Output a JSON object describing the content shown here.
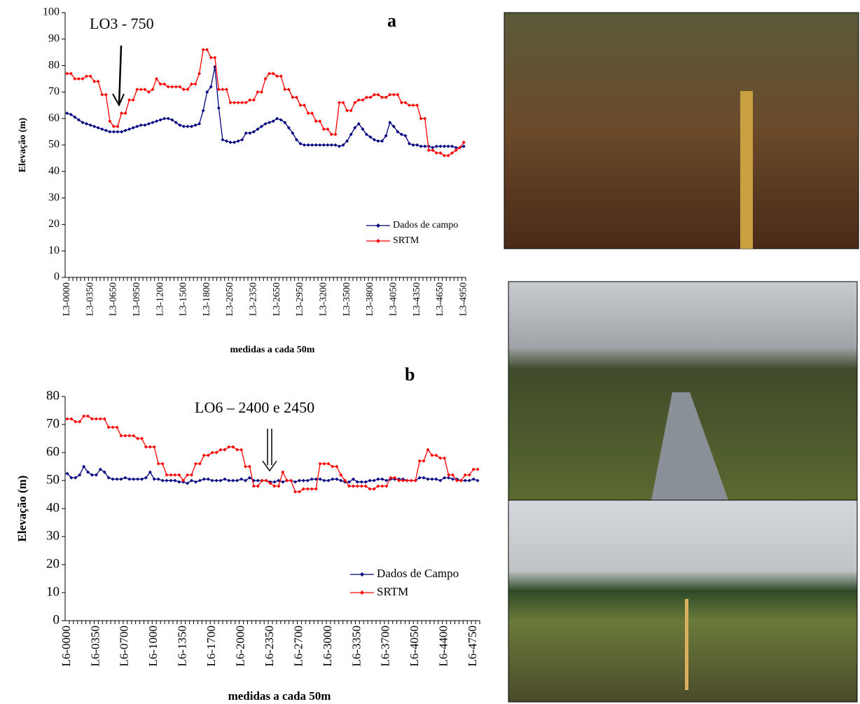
{
  "chart_data": [
    {
      "type": "line",
      "annotation": "LO3 - 750",
      "panel_label": "a",
      "y_label": "Elevação (m)",
      "x_label": "medidas a cada 50m",
      "ylim": [
        0,
        100
      ],
      "yticks": [
        0,
        10,
        20,
        30,
        40,
        50,
        60,
        70,
        80,
        90,
        100
      ],
      "legend": "lower right",
      "categories": [
        "L3-0000",
        null,
        null,
        null,
        null,
        null,
        "L3-0350",
        null,
        null,
        null,
        null,
        null,
        "L3-0650",
        null,
        null,
        null,
        null,
        null,
        "L3-0950",
        null,
        null,
        null,
        null,
        null,
        "L3-1200",
        null,
        null,
        null,
        null,
        null,
        "L3-1500",
        null,
        null,
        null,
        null,
        null,
        "L3-1800",
        null,
        null,
        null,
        null,
        null,
        "L3-2050",
        null,
        null,
        null,
        null,
        null,
        "L3-2350",
        null,
        null,
        null,
        null,
        null,
        "L3-2650",
        null,
        null,
        null,
        null,
        null,
        "L3-2950",
        null,
        null,
        null,
        null,
        null,
        "L3-3200",
        null,
        null,
        null,
        null,
        null,
        "L3-3500",
        null,
        null,
        null,
        null,
        null,
        "L3-3800",
        null,
        null,
        null,
        null,
        null,
        "L3-4050",
        null,
        null,
        null,
        null,
        null,
        "L3-4350",
        null,
        null,
        null,
        null,
        null,
        "L3-4650",
        null,
        null,
        null,
        null,
        null,
        "L3-4950"
      ],
      "series": [
        {
          "name": "Dados de campo",
          "color": "#000080",
          "values": [
            62,
            61.5,
            60.5,
            59.5,
            58.5,
            58,
            57.5,
            57,
            56.5,
            56,
            55.5,
            55,
            55,
            55,
            55,
            55.5,
            56,
            56.5,
            57,
            57.5,
            57.5,
            58,
            58.5,
            59,
            59.5,
            60,
            60,
            59.5,
            58.5,
            57.5,
            57,
            57,
            57,
            57.5,
            58,
            63,
            70,
            72,
            79.5,
            64,
            52,
            51.5,
            51,
            51,
            51.5,
            52,
            54.5,
            54.5,
            55,
            56,
            57,
            58,
            58.5,
            59,
            60,
            59.5,
            58.5,
            56.5,
            54.5,
            52,
            50.5,
            50,
            50,
            50,
            50,
            50,
            50,
            50,
            50,
            50,
            49.5,
            50,
            51.5,
            54,
            56.5,
            58,
            56,
            54,
            53,
            52,
            51.5,
            51.5,
            53.5,
            58.5,
            57,
            55,
            54,
            53.5,
            50.5,
            50,
            50,
            49.5,
            49.5,
            49.5,
            49,
            49.5,
            49.5,
            49.5,
            49.5,
            49.5,
            49,
            49,
            49.5
          ]
        },
        {
          "name": "SRTM",
          "color": "#ff0000",
          "values": [
            77,
            77,
            75,
            75,
            75,
            76,
            76,
            74,
            74,
            69,
            69,
            59,
            57,
            57,
            62,
            62,
            67,
            67,
            71,
            71,
            71,
            70,
            71,
            75,
            73,
            73,
            72,
            72,
            72,
            72,
            71,
            71,
            73,
            73,
            77,
            86,
            86,
            83,
            83,
            71,
            71,
            71,
            66,
            66,
            66,
            66,
            66,
            67,
            67,
            70,
            70,
            75,
            77,
            77,
            76,
            76,
            71,
            71,
            68,
            68,
            65,
            65,
            62,
            62,
            59,
            59,
            56,
            56,
            54,
            54,
            66,
            66,
            63,
            63,
            66,
            67,
            67,
            68,
            68,
            69,
            69,
            68,
            68,
            69,
            69,
            69,
            66,
            66,
            65,
            65,
            65,
            60,
            60,
            48,
            48,
            47,
            47,
            46,
            46,
            47,
            48,
            49,
            51
          ]
        }
      ]
    },
    {
      "type": "line",
      "annotation": "LO6 – 2400 e 2450",
      "panel_label": "b",
      "y_label": "Elevação (m)",
      "x_label": "medidas a cada 50m",
      "ylim": [
        0,
        80
      ],
      "yticks": [
        0,
        10,
        20,
        30,
        40,
        50,
        60,
        70,
        80
      ],
      "legend": "lower right",
      "categories": [
        "L6-0000",
        null,
        null,
        null,
        null,
        null,
        null,
        "L6-0350",
        null,
        null,
        null,
        null,
        null,
        null,
        "L6-0700",
        null,
        null,
        null,
        null,
        null,
        null,
        "L6-1000",
        null,
        null,
        null,
        null,
        null,
        null,
        "L6-1350",
        null,
        null,
        null,
        null,
        null,
        null,
        "L6-1700",
        null,
        null,
        null,
        null,
        null,
        null,
        "L6-2000",
        null,
        null,
        null,
        null,
        null,
        null,
        "L6-2350",
        null,
        null,
        null,
        null,
        null,
        null,
        "L6-2700",
        null,
        null,
        null,
        null,
        null,
        null,
        "L6-3000",
        null,
        null,
        null,
        null,
        null,
        null,
        "L6-3350",
        null,
        null,
        null,
        null,
        null,
        null,
        "L6-3700",
        null,
        null,
        null,
        null,
        null,
        null,
        "L6-4050",
        null,
        null,
        null,
        null,
        null,
        null,
        "L6-4400",
        null,
        null,
        null,
        null,
        null,
        null,
        "L6-4750",
        null
      ],
      "series": [
        {
          "name": "Dados de Campo",
          "color": "#000080",
          "values": [
            52.5,
            51,
            51,
            52,
            55,
            53,
            52,
            52,
            54,
            53,
            51,
            50.5,
            50.5,
            50.5,
            51,
            50.5,
            50.5,
            50.5,
            50.5,
            51,
            53,
            50.5,
            50.5,
            50,
            50,
            50,
            50,
            49.5,
            49.5,
            49,
            50,
            49.5,
            50,
            50.5,
            50.5,
            50,
            50,
            50,
            50.5,
            50,
            50,
            50,
            50.5,
            50,
            51,
            50,
            50,
            50,
            50,
            49.5,
            49.5,
            50,
            49.5,
            50,
            50,
            49.5,
            50,
            50,
            50,
            50.5,
            50.5,
            50.5,
            50,
            50,
            50.5,
            50.5,
            50,
            49.5,
            49.5,
            50.5,
            49.5,
            49.5,
            49.5,
            50,
            50,
            50.5,
            50.5,
            50,
            50.5,
            50.5,
            50.5,
            50.5,
            50,
            50,
            50,
            51,
            51,
            50.5,
            50.5,
            50.5,
            50,
            51,
            51,
            50.5,
            50.5,
            50,
            50,
            50,
            50.5,
            50
          ]
        },
        {
          "name": "SRTM",
          "color": "#ff0000",
          "values": [
            72,
            72,
            71,
            71,
            73,
            73,
            72,
            72,
            72,
            72,
            69,
            69,
            69,
            66,
            66,
            66,
            66,
            65,
            65,
            62,
            62,
            62,
            56,
            56,
            52,
            52,
            52,
            52,
            50,
            52,
            52,
            56,
            56,
            59,
            59,
            60,
            60,
            61,
            61,
            62,
            62,
            61,
            61,
            55,
            55,
            48,
            48,
            50,
            50,
            49,
            48,
            48,
            53,
            50,
            50,
            46,
            46,
            47,
            47,
            47,
            47,
            56,
            56,
            56,
            55,
            55,
            52,
            50,
            48,
            48,
            48,
            48,
            48,
            47,
            47,
            48,
            48,
            48,
            51,
            51,
            50,
            50,
            50,
            50,
            50,
            57,
            57,
            61,
            59,
            59,
            58,
            58,
            52,
            52,
            50,
            50,
            52,
            52,
            54,
            54
          ]
        }
      ]
    }
  ]
}
